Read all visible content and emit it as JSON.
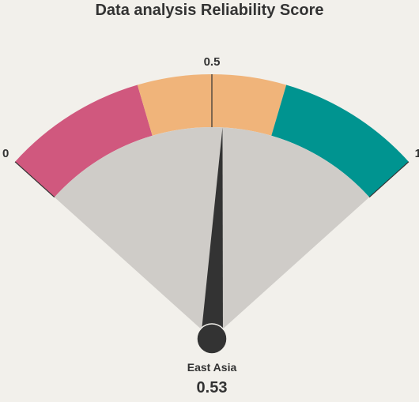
{
  "chart_data": {
    "type": "gauge",
    "title": "Data analysis Reliability Score",
    "min": 0,
    "max": 1,
    "ticks": [
      {
        "value": 0,
        "label": "0"
      },
      {
        "value": 0.5,
        "label": "0.5"
      },
      {
        "value": 1,
        "label": "1"
      }
    ],
    "bands": [
      {
        "from": 0,
        "to": 0.33,
        "color": "#d0587e"
      },
      {
        "from": 0.33,
        "to": 0.67,
        "color": "#f0b47a"
      },
      {
        "from": 0.67,
        "to": 1,
        "color": "#009490"
      }
    ],
    "inner_fill_color": "#cfccc8",
    "needle_color": "#333333",
    "value": 0.53,
    "value_text": "0.53",
    "category": "East Asia"
  }
}
